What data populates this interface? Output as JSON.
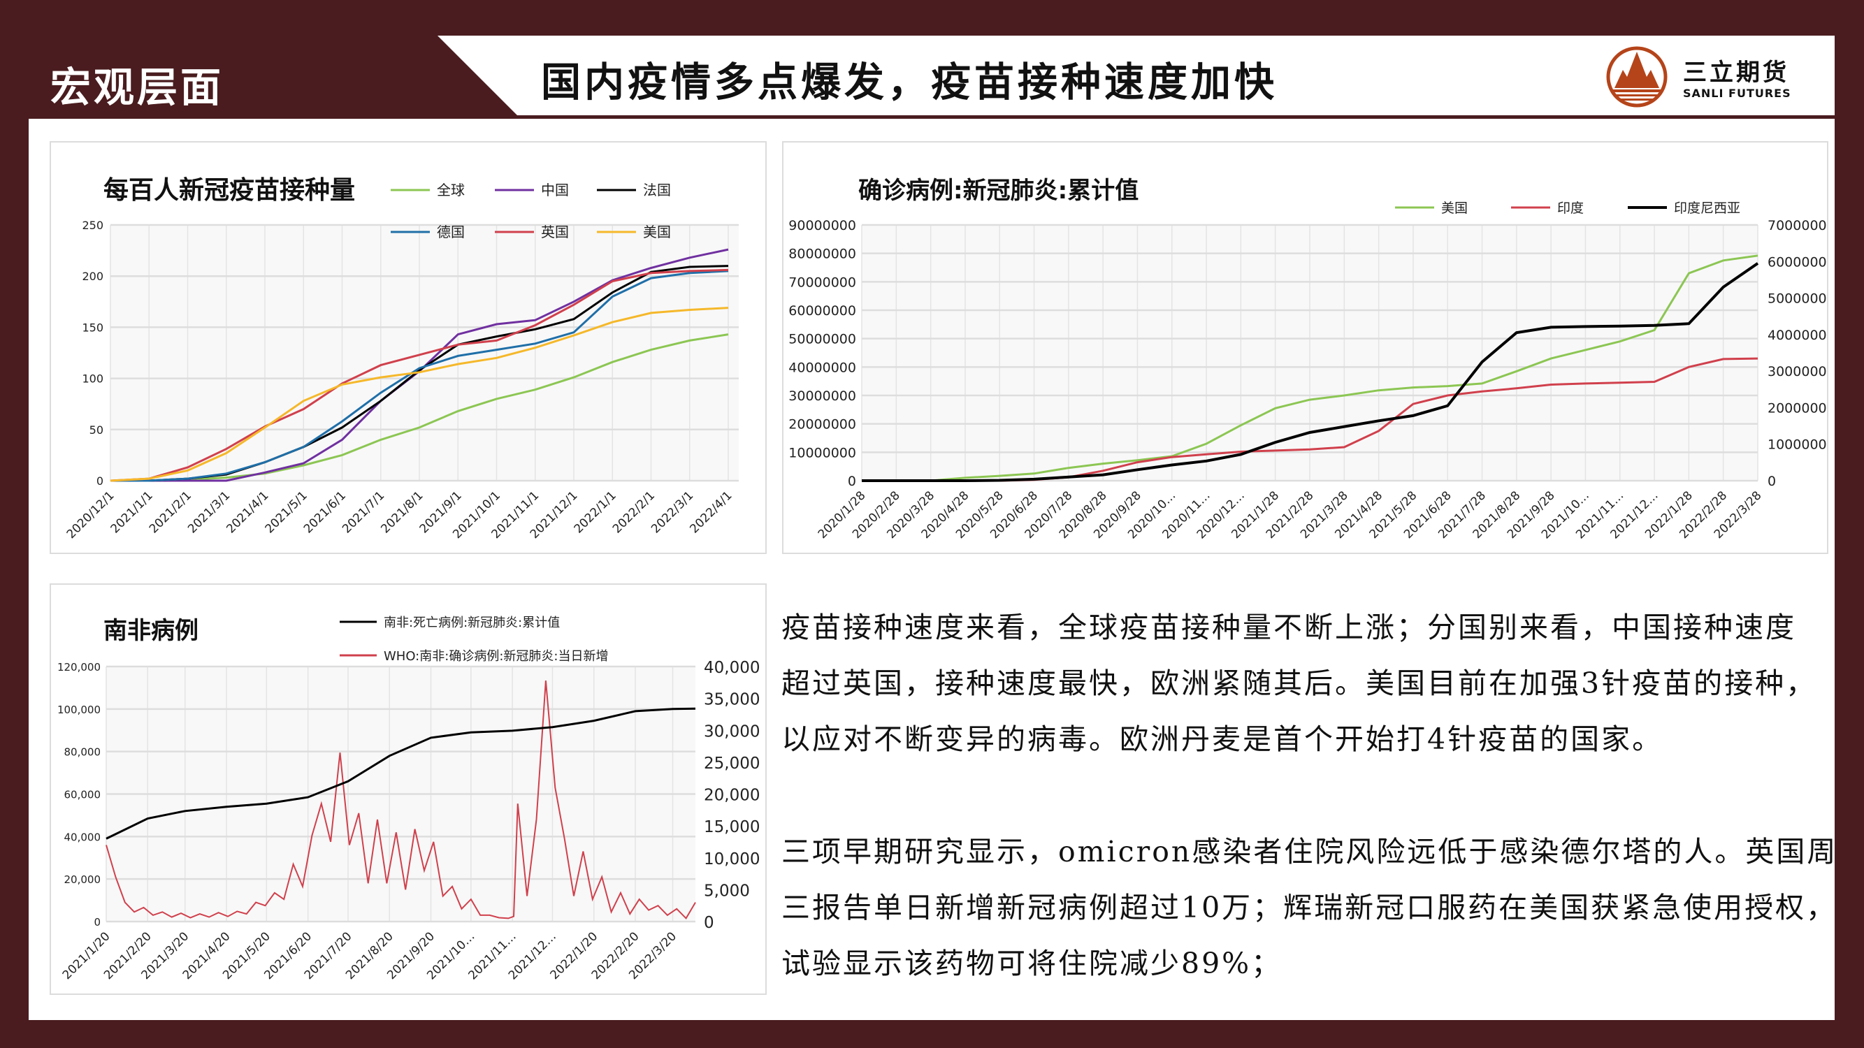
{
  "header": {
    "section": "宏观层面",
    "title": "国内疫情多点爆发，疫苗接种速度加快",
    "logo_cn": "三立期货",
    "logo_en": "SANLI FUTURES",
    "colors": {
      "frame": "#4a1c1f",
      "logo": "#b5441a"
    }
  },
  "text": {
    "paragraph1": [
      "疫苗接种速度来看，全球疫苗接种量不断上涨；分国别来看，中国接种速度",
      "超过英国，接种速度最快，欧洲紧随其后。美国目前在加强3针疫苗的接种，",
      "以应对不断变异的病毒。欧洲丹麦是首个开始打4针疫苗的国家。"
    ],
    "paragraph2": [
      "三项早期研究显示，omicron感染者住院风险远低于感染德尔塔的人。英国周",
      "三报告单日新增新冠病例超过10万；辉瑞新冠口服药在美国获紧急使用授权，",
      "试验显示该药物可将住院减少89%；"
    ]
  },
  "chart_data": [
    {
      "type": "line",
      "title": "每百人新冠疫苗接种量",
      "categories": [
        "2020/12/1",
        "2021/1/1",
        "2021/2/1",
        "2021/3/1",
        "2021/4/1",
        "2021/5/1",
        "2021/6/1",
        "2021/7/1",
        "2021/8/1",
        "2021/9/1",
        "2021/10/1",
        "2021/11/1",
        "2021/12/1",
        "2022/1/1",
        "2022/2/1",
        "2022/3/1",
        "2022/4/1"
      ],
      "yticks": [
        "0",
        "50",
        "100",
        "150",
        "200",
        "250"
      ],
      "ylim": [
        0,
        250
      ],
      "grid": true,
      "legend": "top-right",
      "series": [
        {
          "name": "全球",
          "color": "#8cc653",
          "values": [
            0,
            0,
            1,
            3,
            7,
            15,
            25,
            40,
            52,
            68,
            80,
            89,
            101,
            116,
            128,
            137,
            143
          ]
        },
        {
          "name": "中国",
          "color": "#7030a0",
          "values": [
            0,
            0,
            0,
            0,
            8,
            17,
            40,
            78,
            107,
            143,
            153,
            157,
            175,
            196,
            208,
            218,
            226
          ]
        },
        {
          "name": "法国",
          "color": "#000000",
          "values": [
            0,
            0,
            2,
            6,
            18,
            33,
            52,
            78,
            108,
            133,
            141,
            148,
            158,
            184,
            204,
            209,
            210
          ]
        },
        {
          "name": "德国",
          "color": "#1f6fa8",
          "values": [
            0,
            0,
            2,
            7,
            18,
            33,
            58,
            86,
            110,
            122,
            128,
            134,
            145,
            180,
            198,
            203,
            205
          ]
        },
        {
          "name": "英国",
          "color": "#d0404c",
          "values": [
            0,
            2,
            13,
            31,
            53,
            70,
            95,
            113,
            123,
            133,
            137,
            152,
            172,
            195,
            203,
            205,
            206
          ]
        },
        {
          "name": "美国",
          "color": "#f5b82a",
          "values": [
            0,
            2,
            10,
            27,
            52,
            78,
            94,
            101,
            106,
            114,
            120,
            130,
            142,
            155,
            164,
            167,
            169
          ]
        }
      ]
    },
    {
      "type": "line",
      "title": "确诊病例:新冠肺炎:累计值",
      "categories": [
        "2020/1/28",
        "2020/2/28",
        "2020/3/28",
        "2020/4/28",
        "2020/5/28",
        "2020/6/28",
        "2020/7/28",
        "2020/8/28",
        "2020/9/28",
        "2020/10…",
        "2020/11…",
        "2020/12…",
        "2021/1/28",
        "2021/2/28",
        "2021/3/28",
        "2021/4/28",
        "2021/5/28",
        "2021/6/28",
        "2021/7/28",
        "2021/8/28",
        "2021/9/28",
        "2021/10…",
        "2021/11…",
        "2021/12…",
        "2022/1/28",
        "2022/2/28",
        "2022/3/28"
      ],
      "yticks_left": [
        "0",
        "10000000",
        "20000000",
        "30000000",
        "40000000",
        "50000000",
        "60000000",
        "70000000",
        "80000000",
        "90000000"
      ],
      "yticks_right": [
        "0",
        "1000000",
        "2000000",
        "3000000",
        "4000000",
        "5000000",
        "6000000",
        "7000000"
      ],
      "ylim_left": [
        0,
        90000000
      ],
      "ylim_right": [
        0,
        7000000
      ],
      "grid": true,
      "legend": "top-right",
      "series": [
        {
          "name": "美国",
          "axis": "left",
          "color": "#8cc653",
          "values": [
            0,
            0,
            0,
            1000000,
            1700000,
            2500000,
            4500000,
            6000000,
            7200000,
            8600000,
            13000000,
            19500000,
            25500000,
            28500000,
            30000000,
            31800000,
            32800000,
            33300000,
            34200000,
            38500000,
            43000000,
            46000000,
            49000000,
            53000000,
            73000000,
            77500000,
            79200000
          ]
        },
        {
          "name": "印度",
          "axis": "left",
          "color": "#d0404c",
          "values": [
            0,
            0,
            0,
            0,
            0,
            300000,
            1200000,
            3500000,
            6500000,
            8300000,
            9300000,
            10200000,
            10600000,
            11000000,
            11800000,
            17500000,
            27000000,
            30000000,
            31400000,
            32500000,
            33800000,
            34200000,
            34500000,
            34800000,
            40000000,
            42800000,
            43000000
          ]
        },
        {
          "name": "印度尼西亚",
          "axis": "right",
          "color": "#000000",
          "values": [
            0,
            0,
            0,
            0,
            10000,
            40000,
            100000,
            160000,
            300000,
            430000,
            540000,
            720000,
            1050000,
            1320000,
            1480000,
            1640000,
            1780000,
            2050000,
            3250000,
            4050000,
            4200000,
            4220000,
            4230000,
            4250000,
            4300000,
            5300000,
            5950000
          ]
        }
      ]
    },
    {
      "type": "line",
      "title": "南非病例",
      "categories": [
        "2021/1/20",
        "2021/2/20",
        "2021/3/20",
        "2021/4/20",
        "2021/5/20",
        "2021/6/20",
        "2021/7/20",
        "2021/8/20",
        "2021/9/20",
        "2021/10…",
        "2021/11…",
        "2021/12…",
        "2022/1/20",
        "2022/2/20",
        "2022/3/20"
      ],
      "yticks_left": [
        "0",
        "20,000",
        "40,000",
        "60,000",
        "80,000",
        "100,000",
        "120,000"
      ],
      "yticks_right": [
        "0",
        "5,000",
        "10,000",
        "15,000",
        "20,000",
        "25,000",
        "30,000",
        "35,000",
        "40,000"
      ],
      "ylim_left": [
        0,
        120000
      ],
      "ylim_right": [
        0,
        40000
      ],
      "grid": true,
      "legend": "top",
      "series": [
        {
          "name": "南非:死亡病例:新冠肺炎:累计值",
          "axis": "left",
          "color": "#000000",
          "x": [
            "2021/1/20",
            "2021/2/20",
            "2021/3/20",
            "2021/4/20",
            "2021/5/20",
            "2021/6/20",
            "2021/7/20",
            "2021/8/20",
            "2021/9/20",
            "2021/10/20",
            "2021/11/20",
            "2021/12/20",
            "2022/1/20",
            "2022/2/20",
            "2022/3/20",
            "2022/4/6"
          ],
          "values": [
            39000,
            48500,
            52000,
            54000,
            55500,
            58500,
            66000,
            78000,
            86500,
            89000,
            89800,
            91500,
            94500,
            99000,
            100000,
            100200
          ]
        },
        {
          "name": "WHO:南非:确诊病例:新冠肺炎:当日新增",
          "axis": "right",
          "color": "#d0404c",
          "x": [
            "2021/1/20",
            "2021/1/27",
            "2021/2/3",
            "2021/2/10",
            "2021/2/17",
            "2021/2/24",
            "2021/3/3",
            "2021/3/10",
            "2021/3/17",
            "2021/3/24",
            "2021/3/31",
            "2021/4/7",
            "2021/4/14",
            "2021/4/21",
            "2021/4/28",
            "2021/5/5",
            "2021/5/12",
            "2021/5/19",
            "2021/5/26",
            "2021/6/2",
            "2021/6/9",
            "2021/6/16",
            "2021/6/23",
            "2021/6/30",
            "2021/7/7",
            "2021/7/14",
            "2021/7/21",
            "2021/7/28",
            "2021/8/4",
            "2021/8/11",
            "2021/8/18",
            "2021/8/25",
            "2021/9/1",
            "2021/9/8",
            "2021/9/15",
            "2021/9/22",
            "2021/9/29",
            "2021/10/6",
            "2021/10/13",
            "2021/10/20",
            "2021/10/27",
            "2021/11/3",
            "2021/11/10",
            "2021/11/17",
            "2021/11/21",
            "2021/11/24",
            "2021/12/1",
            "2021/12/8",
            "2021/12/15",
            "2021/12/22",
            "2021/12/29",
            "2022/1/5",
            "2022/1/12",
            "2022/1/19",
            "2022/1/26",
            "2022/2/2",
            "2022/2/9",
            "2022/2/16",
            "2022/2/23",
            "2022/3/2",
            "2022/3/9",
            "2022/3/16",
            "2022/3/23",
            "2022/3/30",
            "2022/4/6"
          ],
          "values": [
            12000,
            7000,
            3000,
            1500,
            2200,
            1000,
            1500,
            700,
            1300,
            600,
            1200,
            700,
            1400,
            800,
            1600,
            1200,
            3000,
            2500,
            4500,
            3500,
            9000,
            5500,
            13500,
            18500,
            12500,
            26500,
            12000,
            17000,
            6000,
            16000,
            6000,
            14000,
            5000,
            14500,
            8000,
            12500,
            4000,
            5500,
            2000,
            3500,
            1000,
            1000,
            600,
            500,
            800,
            18500,
            4000,
            16000,
            37800,
            21000,
            13000,
            4000,
            11000,
            3500,
            7000,
            1500,
            4500,
            1200,
            3500,
            1800,
            2500,
            1000,
            2000,
            500,
            3000
          ]
        }
      ]
    }
  ]
}
